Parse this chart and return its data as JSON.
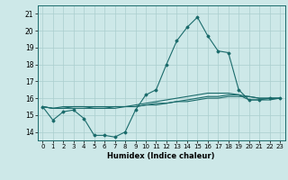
{
  "xlabel": "Humidex (Indice chaleur)",
  "ylabel": "",
  "xlim": [
    -0.5,
    23.5
  ],
  "ylim": [
    13.5,
    21.5
  ],
  "yticks": [
    14,
    15,
    16,
    17,
    18,
    19,
    20,
    21
  ],
  "xtick_labels": [
    "0",
    "1",
    "2",
    "3",
    "4",
    "5",
    "6",
    "7",
    "8",
    "9",
    "10",
    "11",
    "12",
    "13",
    "14",
    "15",
    "16",
    "17",
    "18",
    "19",
    "20",
    "21",
    "22",
    "23"
  ],
  "bg_color": "#cde8e8",
  "line_color": "#1a6b6b",
  "grid_color": "#aacece",
  "curve1": [
    15.5,
    14.7,
    15.2,
    15.3,
    14.8,
    13.8,
    13.8,
    13.7,
    14.0,
    15.3,
    16.2,
    16.5,
    18.0,
    19.4,
    20.2,
    20.8,
    19.7,
    18.8,
    18.7,
    16.5,
    15.9,
    15.9,
    16.0,
    16.0
  ],
  "curve2": [
    15.5,
    15.4,
    15.5,
    15.5,
    15.5,
    15.4,
    15.4,
    15.4,
    15.5,
    15.6,
    15.7,
    15.8,
    15.9,
    16.0,
    16.1,
    16.2,
    16.3,
    16.3,
    16.3,
    16.2,
    16.1,
    16.0,
    16.0,
    16.0
  ],
  "curve3": [
    15.5,
    15.4,
    15.4,
    15.5,
    15.5,
    15.5,
    15.5,
    15.5,
    15.5,
    15.5,
    15.6,
    15.7,
    15.7,
    15.8,
    15.9,
    16.0,
    16.1,
    16.1,
    16.2,
    16.2,
    15.9,
    15.9,
    15.9,
    16.0
  ],
  "curve4": [
    15.5,
    15.4,
    15.4,
    15.4,
    15.4,
    15.4,
    15.4,
    15.5,
    15.5,
    15.5,
    15.6,
    15.6,
    15.7,
    15.8,
    15.8,
    15.9,
    16.0,
    16.0,
    16.1,
    16.1,
    16.1,
    16.0,
    16.0,
    16.0
  ]
}
